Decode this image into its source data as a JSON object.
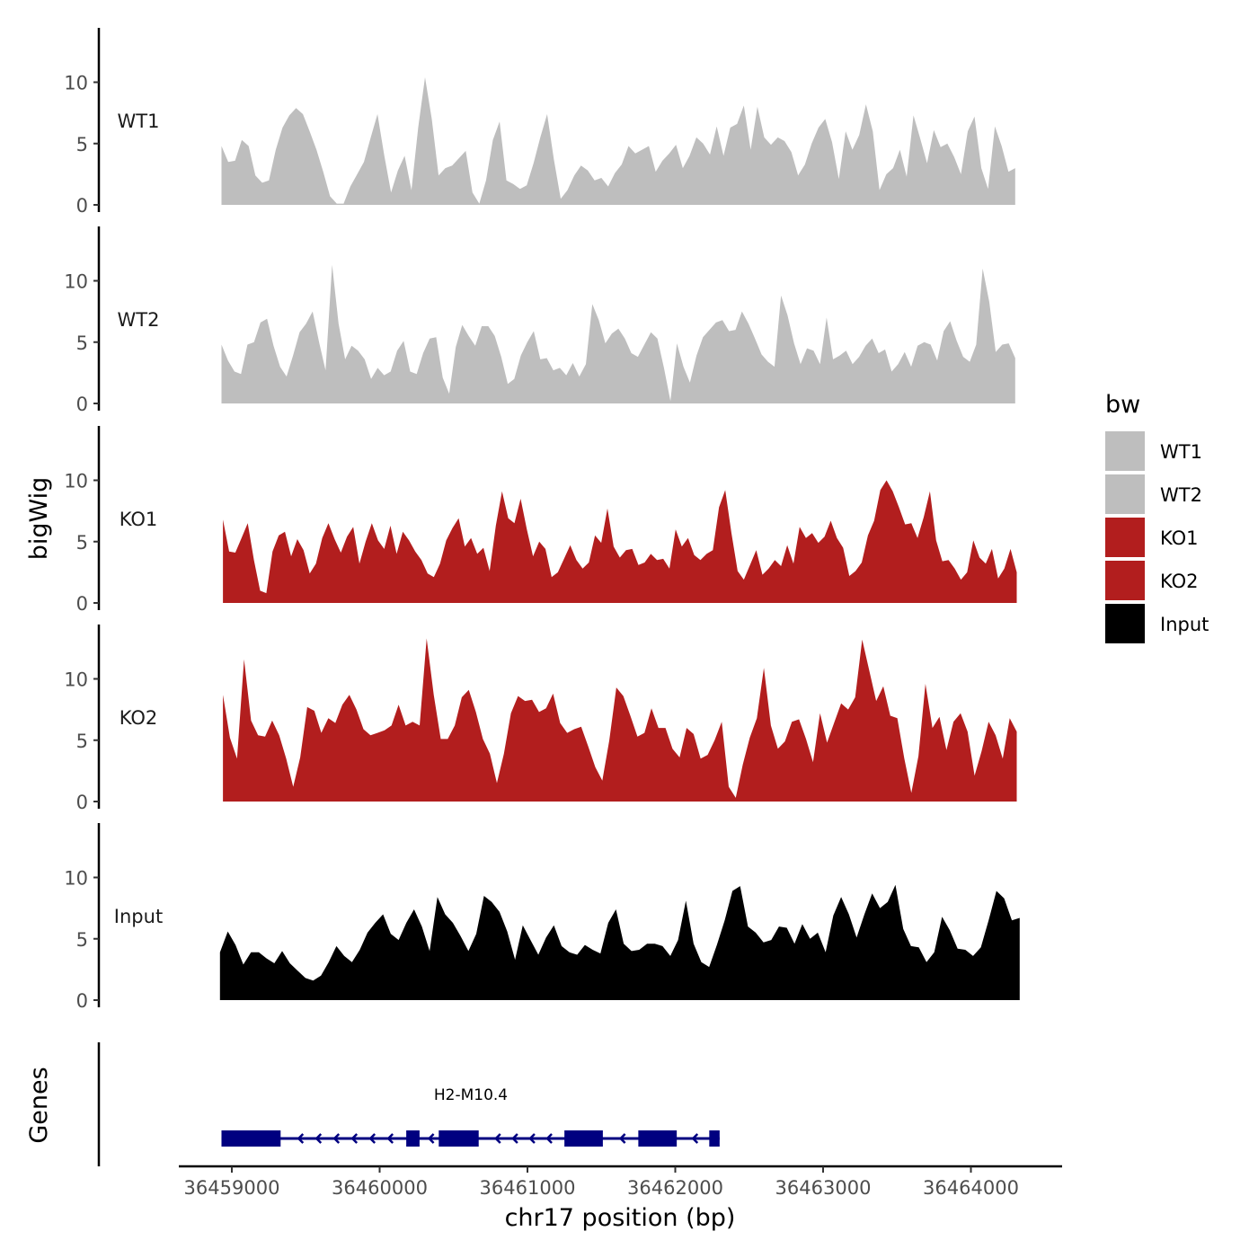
{
  "chart_data": {
    "type": "area",
    "title": "",
    "ylabel": "bigWig",
    "xlabel": "chr17 position (bp)",
    "genes_label": "Genes",
    "xlim": [
      36458650,
      36464600
    ],
    "ylim": [
      0,
      14
    ],
    "y_ticks": [
      0,
      5,
      10
    ],
    "x_ticks": [
      36459000,
      36460000,
      36461000,
      36462000,
      36463000,
      36464000
    ],
    "x_tick_labels": [
      "36459000",
      "36460000",
      "36461000",
      "36462000",
      "36463000",
      "36464000"
    ],
    "legend": {
      "title": "bw",
      "position": "right",
      "entries": [
        {
          "label": "WT1",
          "color": "#bebebe"
        },
        {
          "label": "WT2",
          "color": "#bebebe"
        },
        {
          "label": "KO1",
          "color": "#b21e1e"
        },
        {
          "label": "KO2",
          "color": "#b21e1e"
        },
        {
          "label": "Input",
          "color": "#000000"
        }
      ]
    },
    "series": [
      {
        "name": "WT1",
        "color": "#bebebe",
        "x_start": 36458930,
        "x_end": 36464300,
        "values": [
          4.8,
          3.5,
          3.6,
          5.3,
          4.8,
          2.4,
          1.8,
          2.0,
          4.5,
          6.3,
          7.3,
          7.9,
          7.4,
          6.0,
          4.5,
          2.7,
          0.7,
          0.1,
          0.1,
          1.5,
          2.5,
          3.5,
          5.5,
          7.4,
          4.0,
          1.0,
          2.8,
          4.0,
          1.2,
          6.3,
          10.4,
          7.0,
          2.4,
          3.0,
          3.2,
          3.8,
          4.4,
          1.0,
          0.1,
          2.0,
          5.3,
          6.8,
          2.0,
          1.7,
          1.3,
          1.6,
          3.4,
          5.5,
          7.4,
          3.7,
          0.5,
          1.2,
          2.4,
          3.2,
          2.8,
          2.0,
          2.2,
          1.5,
          2.6,
          3.3,
          4.8,
          4.2,
          4.5,
          4.8,
          2.7,
          3.6,
          4.2,
          4.9,
          3.0,
          4.0,
          5.5,
          5.0,
          4.1,
          6.4,
          4.0,
          6.3,
          6.6,
          8.1,
          4.5,
          8.0,
          5.5,
          4.9,
          5.5,
          5.2,
          4.3,
          2.4,
          3.3,
          5.0,
          6.3,
          7.0,
          5.1,
          2.1,
          6.0,
          4.5,
          5.7,
          8.2,
          6.0,
          1.2,
          2.5,
          3.0,
          4.5,
          2.3,
          7.3,
          5.4,
          3.4,
          6.1,
          4.7,
          5.0,
          3.9,
          2.5,
          6.0,
          7.2,
          3.0,
          1.3,
          6.4,
          4.8,
          2.7,
          3.0
        ]
      },
      {
        "name": "WT2",
        "color": "#bebebe",
        "x_start": 36458930,
        "x_end": 36464300,
        "values": [
          4.8,
          3.5,
          2.6,
          2.4,
          4.8,
          5.0,
          6.6,
          6.9,
          4.7,
          3.0,
          2.2,
          3.9,
          5.8,
          6.5,
          7.5,
          5.0,
          2.7,
          11.3,
          6.5,
          3.6,
          4.7,
          4.3,
          3.6,
          2.0,
          2.9,
          2.3,
          2.6,
          4.3,
          5.1,
          2.6,
          2.4,
          4.1,
          5.3,
          5.4,
          2.1,
          0.8,
          4.6,
          6.4,
          5.5,
          4.7,
          6.3,
          6.3,
          5.5,
          3.8,
          1.6,
          2.0,
          3.9,
          5.0,
          5.9,
          3.6,
          3.7,
          2.7,
          2.9,
          2.3,
          3.3,
          2.2,
          3.2,
          8.1,
          6.8,
          4.9,
          5.7,
          6.1,
          5.3,
          4.1,
          3.8,
          4.8,
          5.8,
          5.3,
          2.9,
          0.2,
          4.9,
          3.0,
          1.7,
          3.9,
          5.4,
          6.0,
          6.6,
          6.8,
          5.9,
          6.0,
          7.5,
          6.5,
          5.3,
          4.0,
          3.4,
          3.0,
          8.8,
          7.2,
          4.9,
          3.2,
          4.5,
          4.3,
          3.2,
          7.0,
          3.6,
          3.9,
          4.3,
          3.2,
          3.8,
          4.7,
          5.3,
          4.1,
          4.4,
          2.6,
          3.2,
          4.2,
          3.0,
          4.7,
          5.0,
          4.8,
          3.5,
          5.9,
          6.7,
          5.1,
          3.8,
          3.4,
          4.8,
          11.0,
          8.3,
          4.2,
          4.8,
          4.9,
          3.7
        ]
      },
      {
        "name": "KO1",
        "color": "#b21e1e",
        "x_start": 36458940,
        "x_end": 36464310,
        "values": [
          6.8,
          4.2,
          4.1,
          5.3,
          6.5,
          3.5,
          1.0,
          0.8,
          4.2,
          5.5,
          5.8,
          3.8,
          5.2,
          4.3,
          2.4,
          3.2,
          5.3,
          6.5,
          5.2,
          4.1,
          5.4,
          6.2,
          3.2,
          5.0,
          6.5,
          5.1,
          4.4,
          6.3,
          4.0,
          5.8,
          5.1,
          4.2,
          3.5,
          2.4,
          2.1,
          3.2,
          5.1,
          6.1,
          6.9,
          4.6,
          5.3,
          4.0,
          4.5,
          2.6,
          6.3,
          9.1,
          6.9,
          6.5,
          8.5,
          6.0,
          3.8,
          5.0,
          4.4,
          2.1,
          2.5,
          3.6,
          4.7,
          3.5,
          2.8,
          3.3,
          5.5,
          4.9,
          7.7,
          4.6,
          3.7,
          4.3,
          4.4,
          3.1,
          3.3,
          4.0,
          3.5,
          3.6,
          2.8,
          6.0,
          4.6,
          5.3,
          3.9,
          3.5,
          4.0,
          4.3,
          7.8,
          9.2,
          5.7,
          2.6,
          1.9,
          3.1,
          4.3,
          2.3,
          2.8,
          3.5,
          3.0,
          4.7,
          3.2,
          6.2,
          5.3,
          5.7,
          4.9,
          5.4,
          6.7,
          5.3,
          4.5,
          2.2,
          2.6,
          3.3,
          5.5,
          6.7,
          9.2,
          10.0,
          9.1,
          7.8,
          6.4,
          6.5,
          5.3,
          7.0,
          9.1,
          5.1,
          3.4,
          3.5,
          2.8,
          1.9,
          2.5,
          5.1,
          3.7,
          3.2,
          4.4,
          2.0,
          2.8,
          4.4,
          2.5
        ]
      },
      {
        "name": "KO2",
        "color": "#b21e1e",
        "x_start": 36458940,
        "x_end": 36464310,
        "values": [
          8.7,
          5.2,
          3.5,
          11.6,
          6.6,
          5.4,
          5.3,
          6.6,
          5.4,
          3.5,
          1.2,
          3.6,
          7.7,
          7.4,
          5.6,
          6.8,
          6.4,
          7.9,
          8.7,
          7.5,
          5.9,
          5.4,
          5.6,
          5.8,
          6.2,
          7.9,
          6.2,
          6.5,
          6.2,
          13.3,
          8.7,
          5.1,
          5.1,
          6.2,
          8.5,
          9.1,
          7.3,
          5.1,
          3.9,
          1.5,
          3.9,
          7.2,
          8.6,
          8.2,
          8.3,
          7.3,
          7.6,
          8.8,
          6.4,
          5.6,
          5.9,
          6.1,
          4.5,
          2.8,
          1.7,
          5.0,
          9.3,
          8.6,
          7.0,
          5.3,
          5.6,
          7.6,
          6.0,
          6.0,
          4.3,
          3.6,
          6.0,
          5.5,
          3.5,
          3.8,
          5.0,
          6.5,
          1.2,
          0.3,
          3.0,
          5.2,
          6.8,
          10.9,
          6.2,
          4.3,
          4.9,
          6.5,
          6.7,
          5.1,
          3.2,
          7.2,
          4.8,
          6.4,
          8.0,
          7.5,
          8.5,
          13.2,
          10.7,
          8.2,
          9.4,
          7.0,
          6.8,
          3.5,
          0.7,
          3.7,
          9.6,
          6.0,
          6.9,
          4.2,
          6.5,
          7.2,
          5.7,
          2.1,
          4.1,
          6.5,
          5.4,
          3.5,
          6.8,
          5.7
        ]
      },
      {
        "name": "Input",
        "color": "#000000",
        "x_start": 36458920,
        "x_end": 36464330,
        "values": [
          3.9,
          5.6,
          4.5,
          2.9,
          3.9,
          3.9,
          3.4,
          3.0,
          4.0,
          3.0,
          2.4,
          1.8,
          1.6,
          2.0,
          3.1,
          4.4,
          3.6,
          3.1,
          4.1,
          5.5,
          6.3,
          7.0,
          5.4,
          4.9,
          6.3,
          7.4,
          6.0,
          4.0,
          8.4,
          7.0,
          6.3,
          5.2,
          4.0,
          5.4,
          8.5,
          8.0,
          7.2,
          5.6,
          3.3,
          6.1,
          4.9,
          3.7,
          5.1,
          6.1,
          4.4,
          3.9,
          3.7,
          4.5,
          4.1,
          3.8,
          6.3,
          7.4,
          4.6,
          4.0,
          4.1,
          4.6,
          4.6,
          4.4,
          3.6,
          4.9,
          8.1,
          4.6,
          3.1,
          2.7,
          4.5,
          6.5,
          8.9,
          9.3,
          6.0,
          5.5,
          4.7,
          4.9,
          6.0,
          5.9,
          4.6,
          6.2,
          5.0,
          5.5,
          3.9,
          6.9,
          8.4,
          7.0,
          5.1,
          7.0,
          8.7,
          7.5,
          8.0,
          9.4,
          5.8,
          4.4,
          4.3,
          3.1,
          3.9,
          6.8,
          5.7,
          4.2,
          4.1,
          3.6,
          4.3,
          6.5,
          8.9,
          8.3,
          6.5,
          6.7
        ]
      }
    ],
    "genes": [
      {
        "name": "H2-M10.4",
        "color": "#000080",
        "start": 36458930,
        "end": 36462300,
        "strand": "-",
        "exons": [
          [
            36458930,
            36459330
          ],
          [
            36460180,
            36460270
          ],
          [
            36460400,
            36460670
          ],
          [
            36461250,
            36461510
          ],
          [
            36461750,
            36462010
          ],
          [
            36462230,
            36462300
          ]
        ]
      }
    ]
  }
}
